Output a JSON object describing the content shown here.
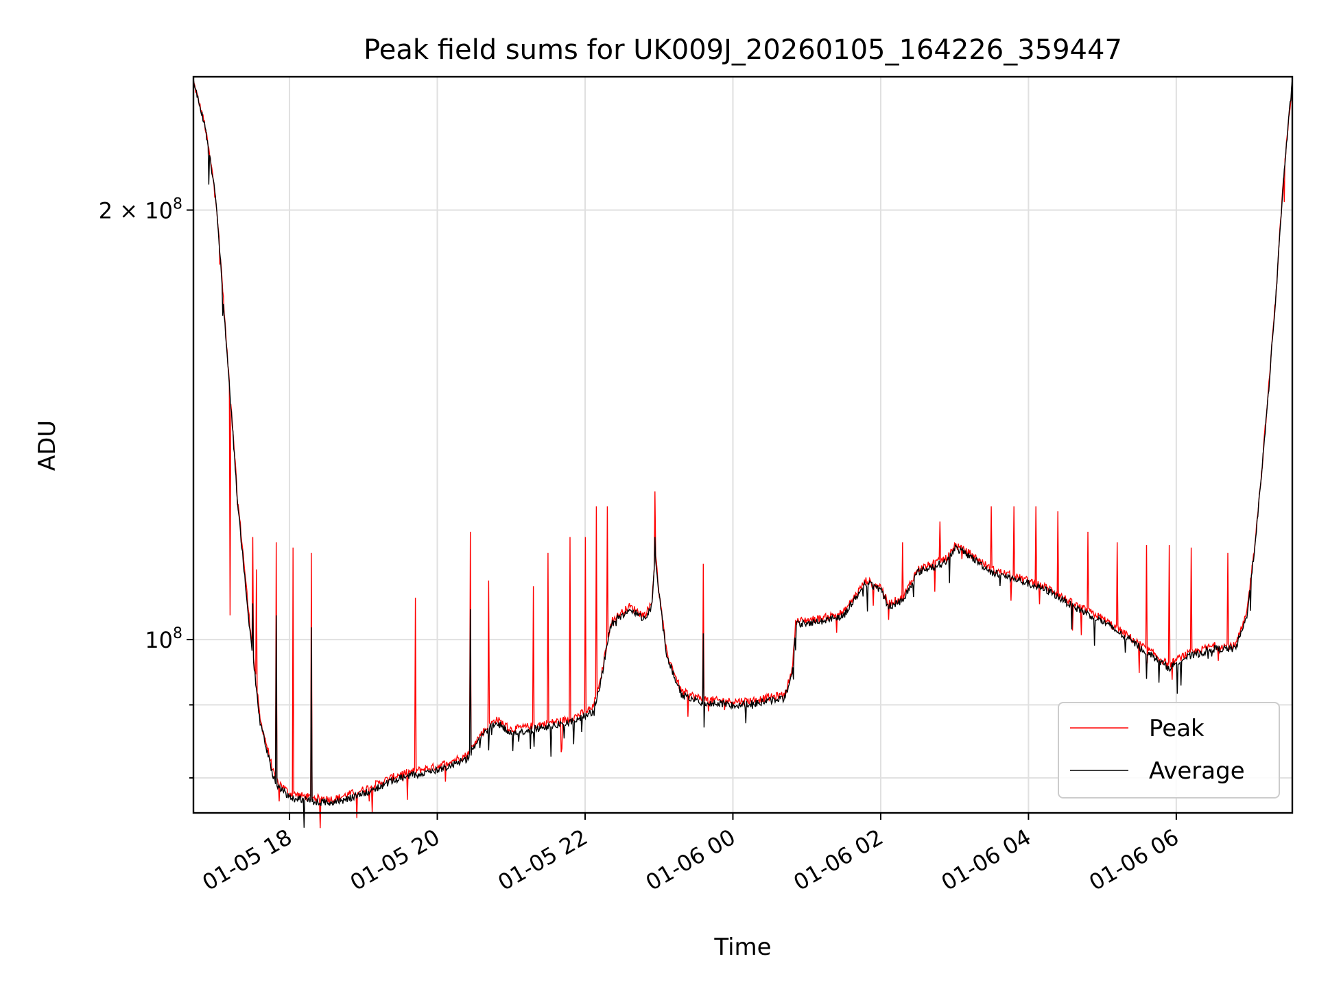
{
  "chart_data": {
    "type": "line",
    "title": "Peak field sums for UK009J_20260105_164226_359447",
    "xlabel": "Time",
    "ylabel": "ADU",
    "yscale": "log",
    "xlim_hours": [
      16.7,
      31.57
    ],
    "ylim": [
      75600000,
      248000000
    ],
    "grid": true,
    "legend_position": "lower-right",
    "x_ticks": [
      {
        "hours": 18,
        "label": "01-05 18"
      },
      {
        "hours": 20,
        "label": "01-05 20"
      },
      {
        "hours": 22,
        "label": "01-05 22"
      },
      {
        "hours": 24,
        "label": "01-06 00"
      },
      {
        "hours": 26,
        "label": "01-06 02"
      },
      {
        "hours": 28,
        "label": "01-06 04"
      },
      {
        "hours": 30,
        "label": "01-06 06"
      }
    ],
    "y_major_ticks": [
      {
        "value": 100000000,
        "base": "10",
        "exp": "8",
        "coef": ""
      },
      {
        "value": 200000000,
        "base": "10",
        "exp": "8",
        "coef": "2 × "
      }
    ],
    "y_minor_ticks": [
      80000000,
      90000000
    ],
    "series": [
      {
        "name": "Peak",
        "color": "#ff0000",
        "baseline": [
          [
            16.7,
            246000000
          ],
          [
            16.85,
            230000000
          ],
          [
            17.0,
            205000000
          ],
          [
            17.15,
            160000000
          ],
          [
            17.3,
            125000000
          ],
          [
            17.45,
            104000000
          ],
          [
            17.6,
            88000000
          ],
          [
            17.8,
            80000000
          ],
          [
            18.0,
            78000000
          ],
          [
            18.3,
            77500000
          ],
          [
            18.6,
            77300000
          ],
          [
            19.0,
            78500000
          ],
          [
            19.5,
            80500000
          ],
          [
            20.0,
            81500000
          ],
          [
            20.4,
            83000000
          ],
          [
            20.6,
            86000000
          ],
          [
            20.8,
            88000000
          ],
          [
            21.0,
            86500000
          ],
          [
            21.4,
            87200000
          ],
          [
            21.8,
            88000000
          ],
          [
            22.1,
            89500000
          ],
          [
            22.2,
            93000000
          ],
          [
            22.35,
            103000000
          ],
          [
            22.6,
            105500000
          ],
          [
            22.8,
            104000000
          ],
          [
            22.9,
            106000000
          ],
          [
            22.95,
            115000000
          ],
          [
            23.0,
            108000000
          ],
          [
            23.1,
            98000000
          ],
          [
            23.3,
            92000000
          ],
          [
            23.6,
            90800000
          ],
          [
            24.0,
            90500000
          ],
          [
            24.3,
            90700000
          ],
          [
            24.7,
            91500000
          ],
          [
            24.8,
            95000000
          ],
          [
            24.85,
            103000000
          ],
          [
            25.2,
            103500000
          ],
          [
            25.5,
            104500000
          ],
          [
            25.8,
            110000000
          ],
          [
            26.0,
            109000000
          ],
          [
            26.1,
            106000000
          ],
          [
            26.3,
            107000000
          ],
          [
            26.5,
            112000000
          ],
          [
            26.9,
            114000000
          ],
          [
            27.0,
            116500000
          ],
          [
            27.2,
            115000000
          ],
          [
            27.5,
            112000000
          ],
          [
            28.0,
            110000000
          ],
          [
            28.3,
            108500000
          ],
          [
            28.6,
            106000000
          ],
          [
            29.0,
            103500000
          ],
          [
            29.3,
            101000000
          ],
          [
            29.6,
            98500000
          ],
          [
            29.9,
            96000000
          ],
          [
            30.1,
            97500000
          ],
          [
            30.5,
            99000000
          ],
          [
            30.8,
            99000000
          ],
          [
            30.95,
            104000000
          ],
          [
            31.05,
            115000000
          ],
          [
            31.15,
            130000000
          ],
          [
            31.25,
            150000000
          ],
          [
            31.35,
            175000000
          ],
          [
            31.45,
            210000000
          ],
          [
            31.57,
            246000000
          ]
        ],
        "spikes": [
          [
            17.2,
            104000000
          ],
          [
            17.5,
            118000000
          ],
          [
            17.55,
            112000000
          ],
          [
            17.82,
            117000000
          ],
          [
            18.05,
            116000000
          ],
          [
            18.3,
            115000000
          ],
          [
            19.7,
            107000000
          ],
          [
            20.45,
            119000000
          ],
          [
            20.7,
            110000000
          ],
          [
            21.3,
            109000000
          ],
          [
            21.5,
            115000000
          ],
          [
            21.8,
            118000000
          ],
          [
            22.0,
            118000000
          ],
          [
            22.15,
            124000000
          ],
          [
            22.3,
            124000000
          ],
          [
            22.95,
            127000000
          ],
          [
            23.6,
            113000000
          ],
          [
            26.3,
            117000000
          ],
          [
            26.8,
            121000000
          ],
          [
            27.5,
            124000000
          ],
          [
            27.8,
            124000000
          ],
          [
            28.1,
            124000000
          ],
          [
            28.4,
            123000000
          ],
          [
            28.8,
            119000000
          ],
          [
            29.2,
            117000000
          ],
          [
            29.6,
            116500000
          ],
          [
            29.9,
            116500000
          ],
          [
            30.2,
            116000000
          ],
          [
            30.7,
            115000000
          ]
        ]
      },
      {
        "name": "Average",
        "color": "#000000",
        "baseline": [
          [
            16.7,
            246000000
          ],
          [
            16.85,
            230000000
          ],
          [
            17.0,
            204000000
          ],
          [
            17.15,
            159000000
          ],
          [
            17.3,
            124000000
          ],
          [
            17.45,
            103000000
          ],
          [
            17.6,
            87500000
          ],
          [
            17.8,
            79500000
          ],
          [
            18.0,
            77500000
          ],
          [
            18.3,
            77000000
          ],
          [
            18.6,
            76800000
          ],
          [
            19.0,
            78000000
          ],
          [
            19.5,
            80000000
          ],
          [
            20.0,
            81000000
          ],
          [
            20.4,
            82500000
          ],
          [
            20.6,
            85500000
          ],
          [
            20.8,
            87500000
          ],
          [
            21.0,
            86000000
          ],
          [
            21.4,
            86700000
          ],
          [
            21.8,
            87500000
          ],
          [
            22.1,
            89000000
          ],
          [
            22.2,
            92500000
          ],
          [
            22.35,
            102500000
          ],
          [
            22.6,
            105000000
          ],
          [
            22.8,
            103500000
          ],
          [
            22.9,
            105500000
          ],
          [
            22.95,
            114500000
          ],
          [
            23.0,
            107500000
          ],
          [
            23.1,
            97500000
          ],
          [
            23.3,
            91500000
          ],
          [
            23.6,
            90300000
          ],
          [
            24.0,
            90000000
          ],
          [
            24.3,
            90200000
          ],
          [
            24.7,
            91000000
          ],
          [
            24.8,
            94500000
          ],
          [
            24.85,
            102500000
          ],
          [
            25.2,
            103000000
          ],
          [
            25.5,
            104000000
          ],
          [
            25.8,
            109500000
          ],
          [
            26.0,
            108500000
          ],
          [
            26.1,
            105500000
          ],
          [
            26.3,
            106500000
          ],
          [
            26.5,
            111500000
          ],
          [
            26.9,
            113500000
          ],
          [
            27.0,
            116000000
          ],
          [
            27.2,
            114500000
          ],
          [
            27.5,
            111500000
          ],
          [
            28.0,
            109500000
          ],
          [
            28.3,
            108000000
          ],
          [
            28.6,
            105500000
          ],
          [
            29.0,
            103000000
          ],
          [
            29.3,
            100500000
          ],
          [
            29.6,
            98000000
          ],
          [
            29.9,
            95500000
          ],
          [
            30.1,
            97000000
          ],
          [
            30.5,
            98500000
          ],
          [
            30.8,
            98500000
          ],
          [
            30.95,
            103500000
          ],
          [
            31.05,
            114500000
          ],
          [
            31.15,
            129500000
          ],
          [
            31.25,
            149500000
          ],
          [
            31.35,
            174500000
          ],
          [
            31.45,
            209500000
          ],
          [
            31.57,
            246000000
          ]
        ],
        "spikes": [
          [
            17.5,
            106000000
          ],
          [
            17.82,
            104000000
          ],
          [
            18.3,
            102000000
          ],
          [
            20.45,
            105000000
          ],
          [
            22.95,
            118000000
          ],
          [
            23.6,
            101000000
          ],
          [
            26.0,
            108500000
          ],
          [
            27.8,
            110000000
          ],
          [
            28.1,
            109000000
          ]
        ]
      }
    ]
  }
}
